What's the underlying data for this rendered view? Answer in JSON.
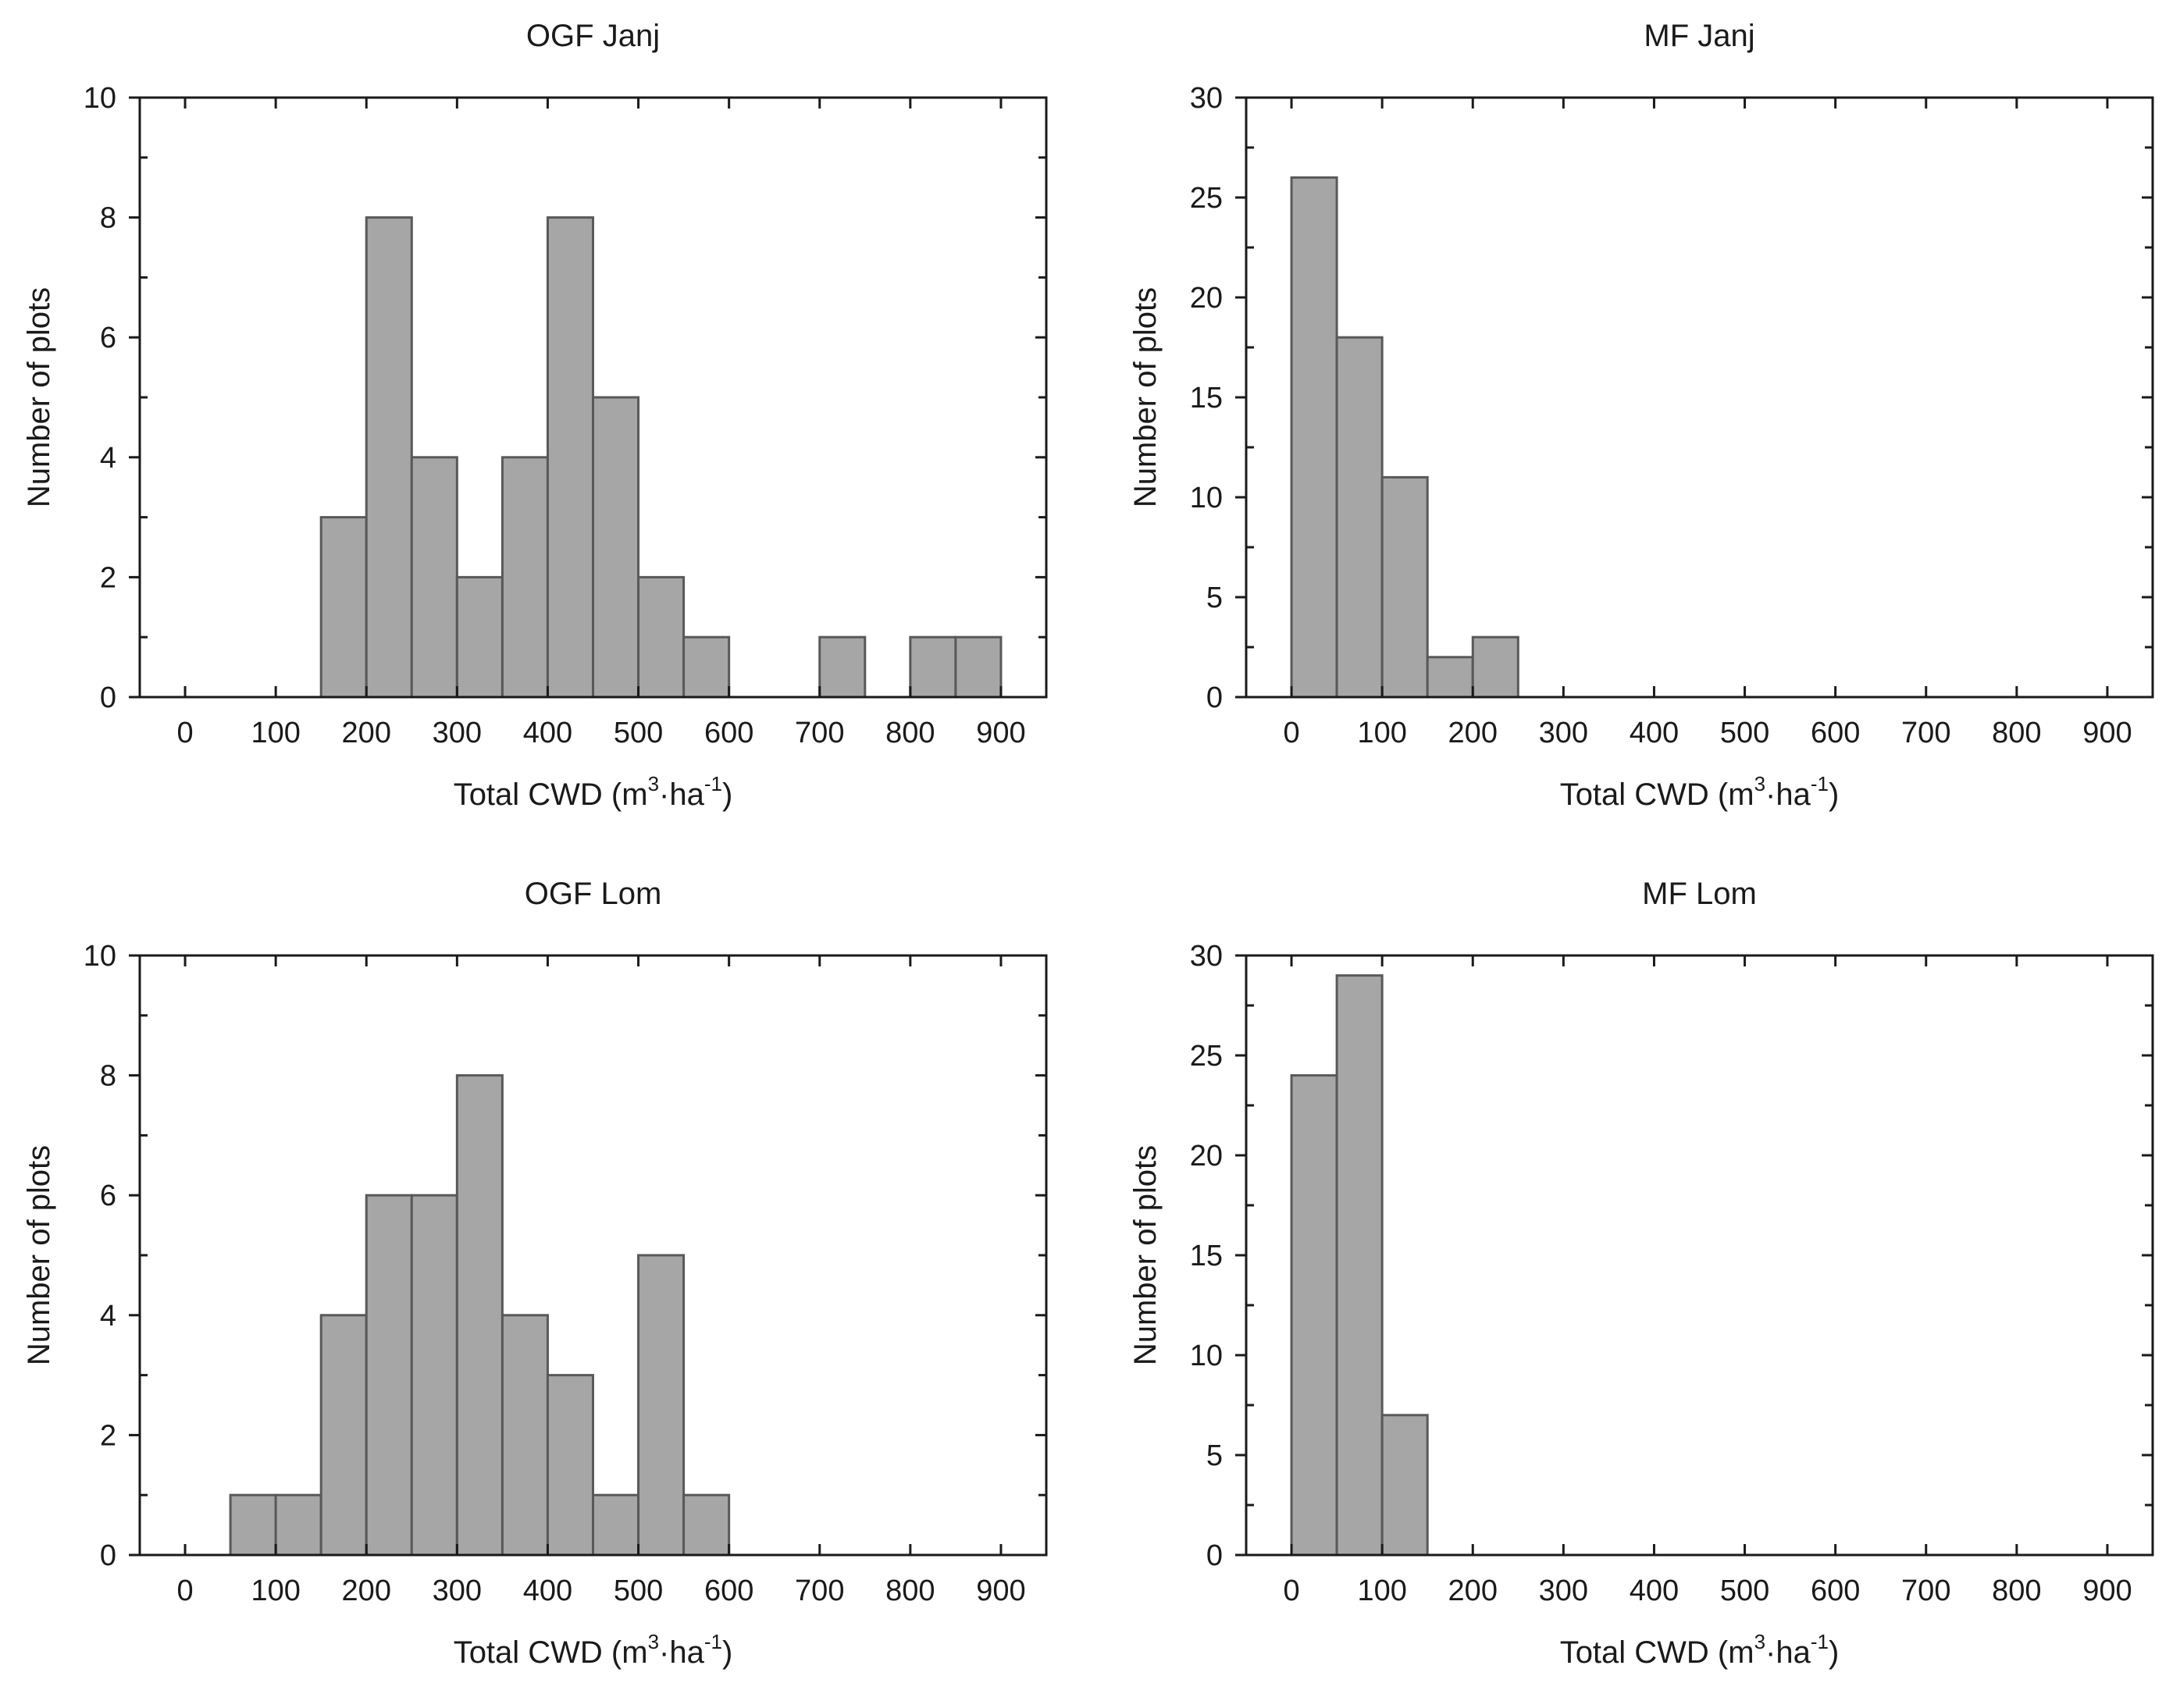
{
  "bar_color": "#a6a6a6",
  "bar_edge_color": "#595959",
  "axis_color": "#1a1a1a",
  "chart_data": [
    {
      "type": "bar",
      "title": "OGF Janj",
      "xlabel_main": "Total CWD (m",
      "xlabel_sup1": "3",
      "xlabel_mid": "·ha",
      "xlabel_sup2": "-1",
      "xlabel_end": ")",
      "ylabel": "Number of plots",
      "bin_width": 50,
      "bin_starts": [
        150,
        200,
        250,
        300,
        350,
        400,
        450,
        500,
        550,
        700,
        800,
        850
      ],
      "values": [
        3,
        8,
        4,
        2,
        4,
        8,
        5,
        2,
        1,
        1,
        1,
        1
      ],
      "xticks": [
        0,
        100,
        200,
        300,
        400,
        500,
        600,
        700,
        800,
        900
      ],
      "yticks": [
        0,
        2,
        4,
        6,
        8,
        10
      ],
      "xlim": [
        -50,
        950
      ],
      "ylim": [
        0,
        10
      ]
    },
    {
      "type": "bar",
      "title": "MF Janj",
      "xlabel_main": "Total CWD (m",
      "xlabel_sup1": "3",
      "xlabel_mid": "·ha",
      "xlabel_sup2": "-1",
      "xlabel_end": ")",
      "ylabel": "Number of plots",
      "bin_width": 50,
      "bin_starts": [
        0,
        50,
        100,
        150,
        200
      ],
      "values": [
        26,
        18,
        11,
        2,
        3
      ],
      "xticks": [
        0,
        100,
        200,
        300,
        400,
        500,
        600,
        700,
        800,
        900
      ],
      "yticks": [
        0,
        5,
        10,
        15,
        20,
        25,
        30
      ],
      "xlim": [
        -50,
        950
      ],
      "ylim": [
        0,
        30
      ]
    },
    {
      "type": "bar",
      "title": "OGF Lom",
      "xlabel_main": "Total CWD (m",
      "xlabel_sup1": "3",
      "xlabel_mid": "·ha",
      "xlabel_sup2": "-1",
      "xlabel_end": ")",
      "ylabel": "Number of plots",
      "bin_width": 50,
      "bin_starts": [
        50,
        100,
        150,
        200,
        250,
        300,
        350,
        400,
        450,
        500,
        550
      ],
      "values": [
        1,
        1,
        4,
        6,
        6,
        8,
        4,
        3,
        1,
        5,
        1
      ],
      "xticks": [
        0,
        100,
        200,
        300,
        400,
        500,
        600,
        700,
        800,
        900
      ],
      "yticks": [
        0,
        2,
        4,
        6,
        8,
        10
      ],
      "xlim": [
        -50,
        950
      ],
      "ylim": [
        0,
        10
      ]
    },
    {
      "type": "bar",
      "title": "MF Lom",
      "xlabel_main": "Total CWD (m",
      "xlabel_sup1": "3",
      "xlabel_mid": "·ha",
      "xlabel_sup2": "-1",
      "xlabel_end": ")",
      "ylabel": "Number of plots",
      "bin_width": 50,
      "bin_starts": [
        0,
        50,
        100
      ],
      "values": [
        24,
        29,
        7
      ],
      "xticks": [
        0,
        100,
        200,
        300,
        400,
        500,
        600,
        700,
        800,
        900
      ],
      "yticks": [
        0,
        5,
        10,
        15,
        20,
        25,
        30
      ],
      "xlim": [
        -50,
        950
      ],
      "ylim": [
        0,
        30
      ]
    }
  ]
}
